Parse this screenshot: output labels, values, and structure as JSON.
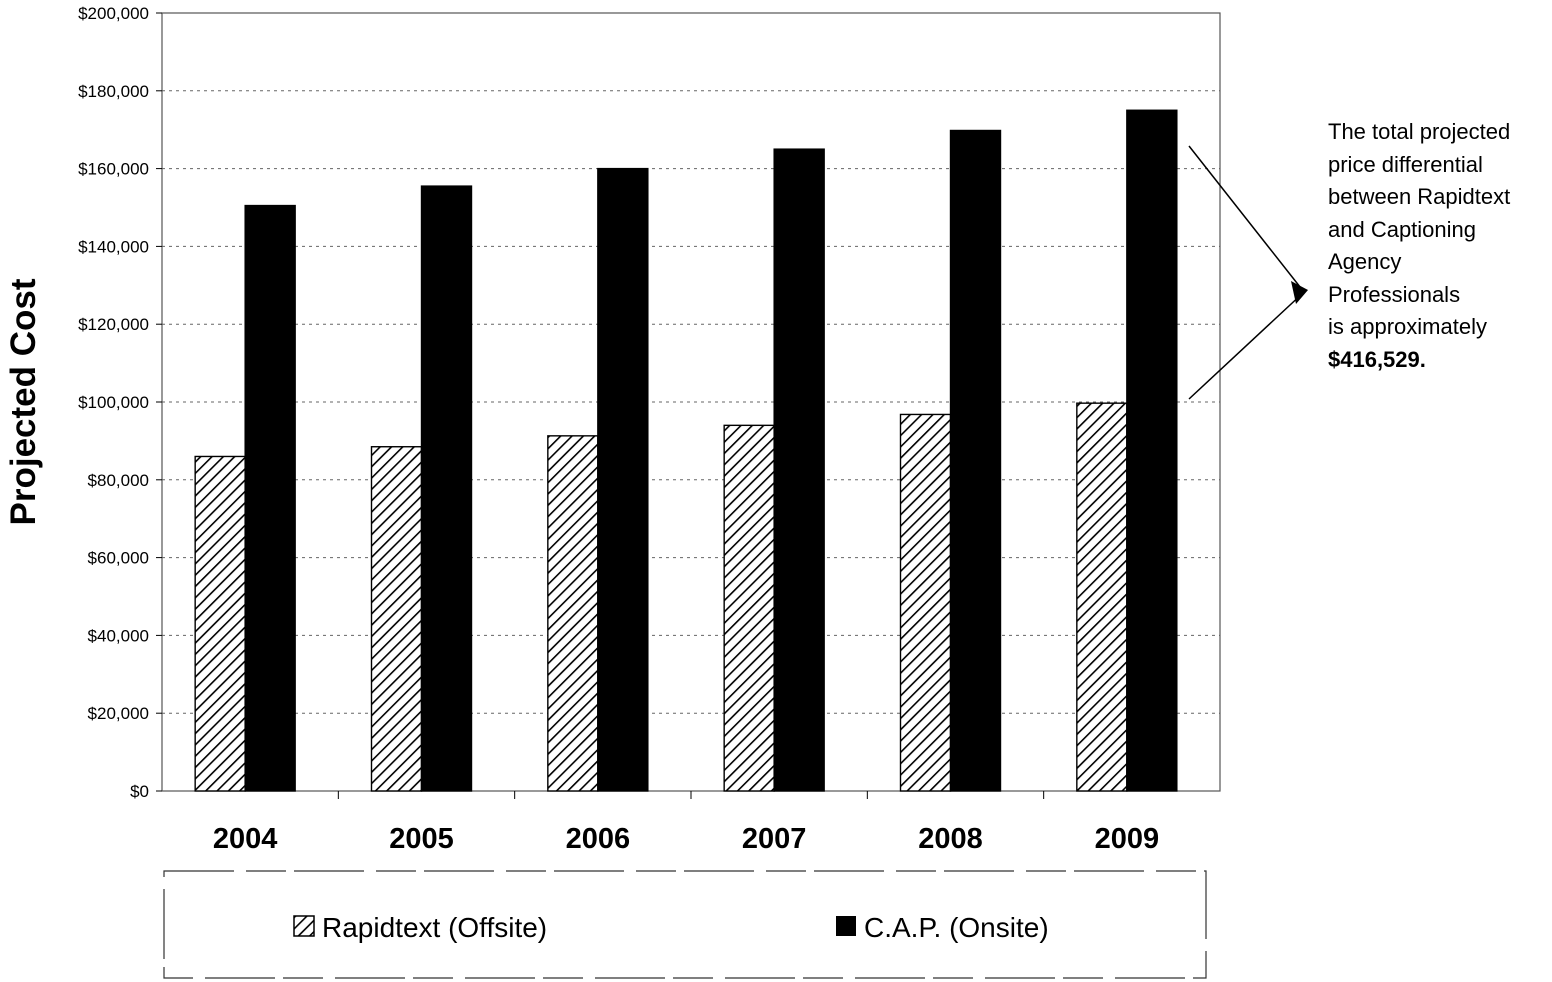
{
  "chart_data": {
    "type": "bar",
    "categories": [
      "2004",
      "2005",
      "2006",
      "2007",
      "2008",
      "2009"
    ],
    "series": [
      {
        "name": "Rapidtext (Offsite)",
        "values": [
          86000,
          88500,
          91300,
          94000,
          96800,
          99700
        ],
        "fill": "hatched"
      },
      {
        "name": "C.A.P. (Onsite)",
        "values": [
          150500,
          155500,
          160000,
          165000,
          169800,
          175000
        ],
        "fill": "solid"
      }
    ],
    "title": "",
    "xlabel": "",
    "ylabel": "Projected Cost",
    "ylim": [
      0,
      200000
    ],
    "yticks": [
      0,
      20000,
      40000,
      60000,
      80000,
      100000,
      120000,
      140000,
      160000,
      180000,
      200000
    ],
    "ytick_labels": [
      "$0",
      "$20,000",
      "$40,000",
      "$60,000",
      "$80,000",
      "$100,000",
      "$120,000",
      "$140,000",
      "$160,000",
      "$180,000",
      "$200,000"
    ],
    "grid": true,
    "legend_position": "bottom",
    "annotation": {
      "lines": [
        "The total projected",
        "price differential",
        "between Rapidtext",
        "and Captioning",
        "Agency",
        "Professionals",
        "is approximately"
      ],
      "amount": "$416,529."
    }
  },
  "colors": {
    "bar_solid": "#000000",
    "bar_hatch_stroke": "#000000",
    "background": "#ffffff",
    "grid": "#666666"
  }
}
